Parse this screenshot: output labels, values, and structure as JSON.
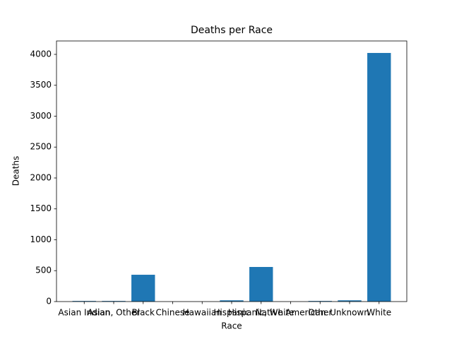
{
  "chart_data": {
    "type": "bar",
    "title": "Deaths per Race",
    "xlabel": "Race",
    "ylabel": "Deaths",
    "categories": [
      "Asian Indian",
      "Asian, Other",
      "Black",
      "Chinese",
      "Hawaiian",
      "Hispanic",
      "Hispanic, White",
      "Native American",
      "Other",
      "Unknown",
      "White"
    ],
    "values": [
      10,
      10,
      434,
      0,
      0,
      20,
      560,
      0,
      10,
      20,
      4023
    ],
    "color": "#1f77b4",
    "ylim": [
      0,
      4217
    ],
    "yticks": [
      0,
      500,
      1000,
      1500,
      2000,
      2500,
      3000,
      3500,
      4000
    ],
    "grid": false
  }
}
